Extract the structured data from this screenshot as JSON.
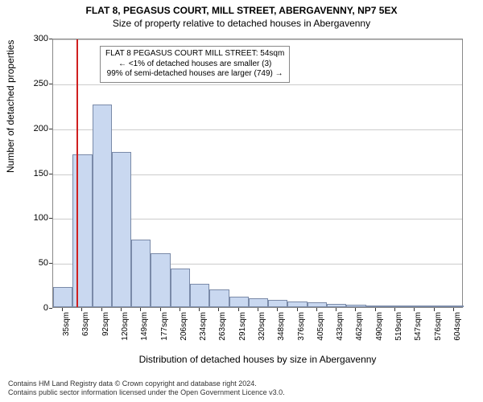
{
  "title1": "FLAT 8, PEGASUS COURT, MILL STREET, ABERGAVENNY, NP7 5EX",
  "title2": "Size of property relative to detached houses in Abergavenny",
  "xlabel": "Distribution of detached houses by size in Abergavenny",
  "ylabel": "Number of detached properties",
  "chart": {
    "type": "histogram",
    "ylim": [
      0,
      300
    ],
    "yticks": [
      0,
      50,
      100,
      150,
      200,
      250,
      300
    ],
    "xticks_labels": [
      "35sqm",
      "63sqm",
      "92sqm",
      "120sqm",
      "149sqm",
      "177sqm",
      "206sqm",
      "234sqm",
      "263sqm",
      "291sqm",
      "320sqm",
      "348sqm",
      "376sqm",
      "405sqm",
      "433sqm",
      "462sqm",
      "490sqm",
      "519sqm",
      "547sqm",
      "576sqm",
      "604sqm"
    ],
    "bar_values": [
      22,
      170,
      226,
      173,
      75,
      60,
      43,
      26,
      20,
      12,
      10,
      8,
      6,
      5,
      4,
      3,
      2,
      2,
      1,
      1,
      1
    ],
    "bar_fill": "#c9d8f0",
    "bar_border": "#7a8aa8",
    "background_color": "#ffffff",
    "grid_color": "#cccccc",
    "axis_color": "#888888",
    "marker_line_color": "#d02020",
    "marker_x_sqm": 54,
    "title_fontsize": 12,
    "label_fontsize": 12,
    "tick_fontsize": 10
  },
  "annotation": {
    "line1": "FLAT 8 PEGASUS COURT MILL STREET: 54sqm",
    "line2": "← <1% of detached houses are smaller (3)",
    "line3": "99% of semi-detached houses are larger (749) →"
  },
  "footer": {
    "line1": "Contains HM Land Registry data © Crown copyright and database right 2024.",
    "line2": "Contains public sector information licensed under the Open Government Licence v3.0."
  }
}
